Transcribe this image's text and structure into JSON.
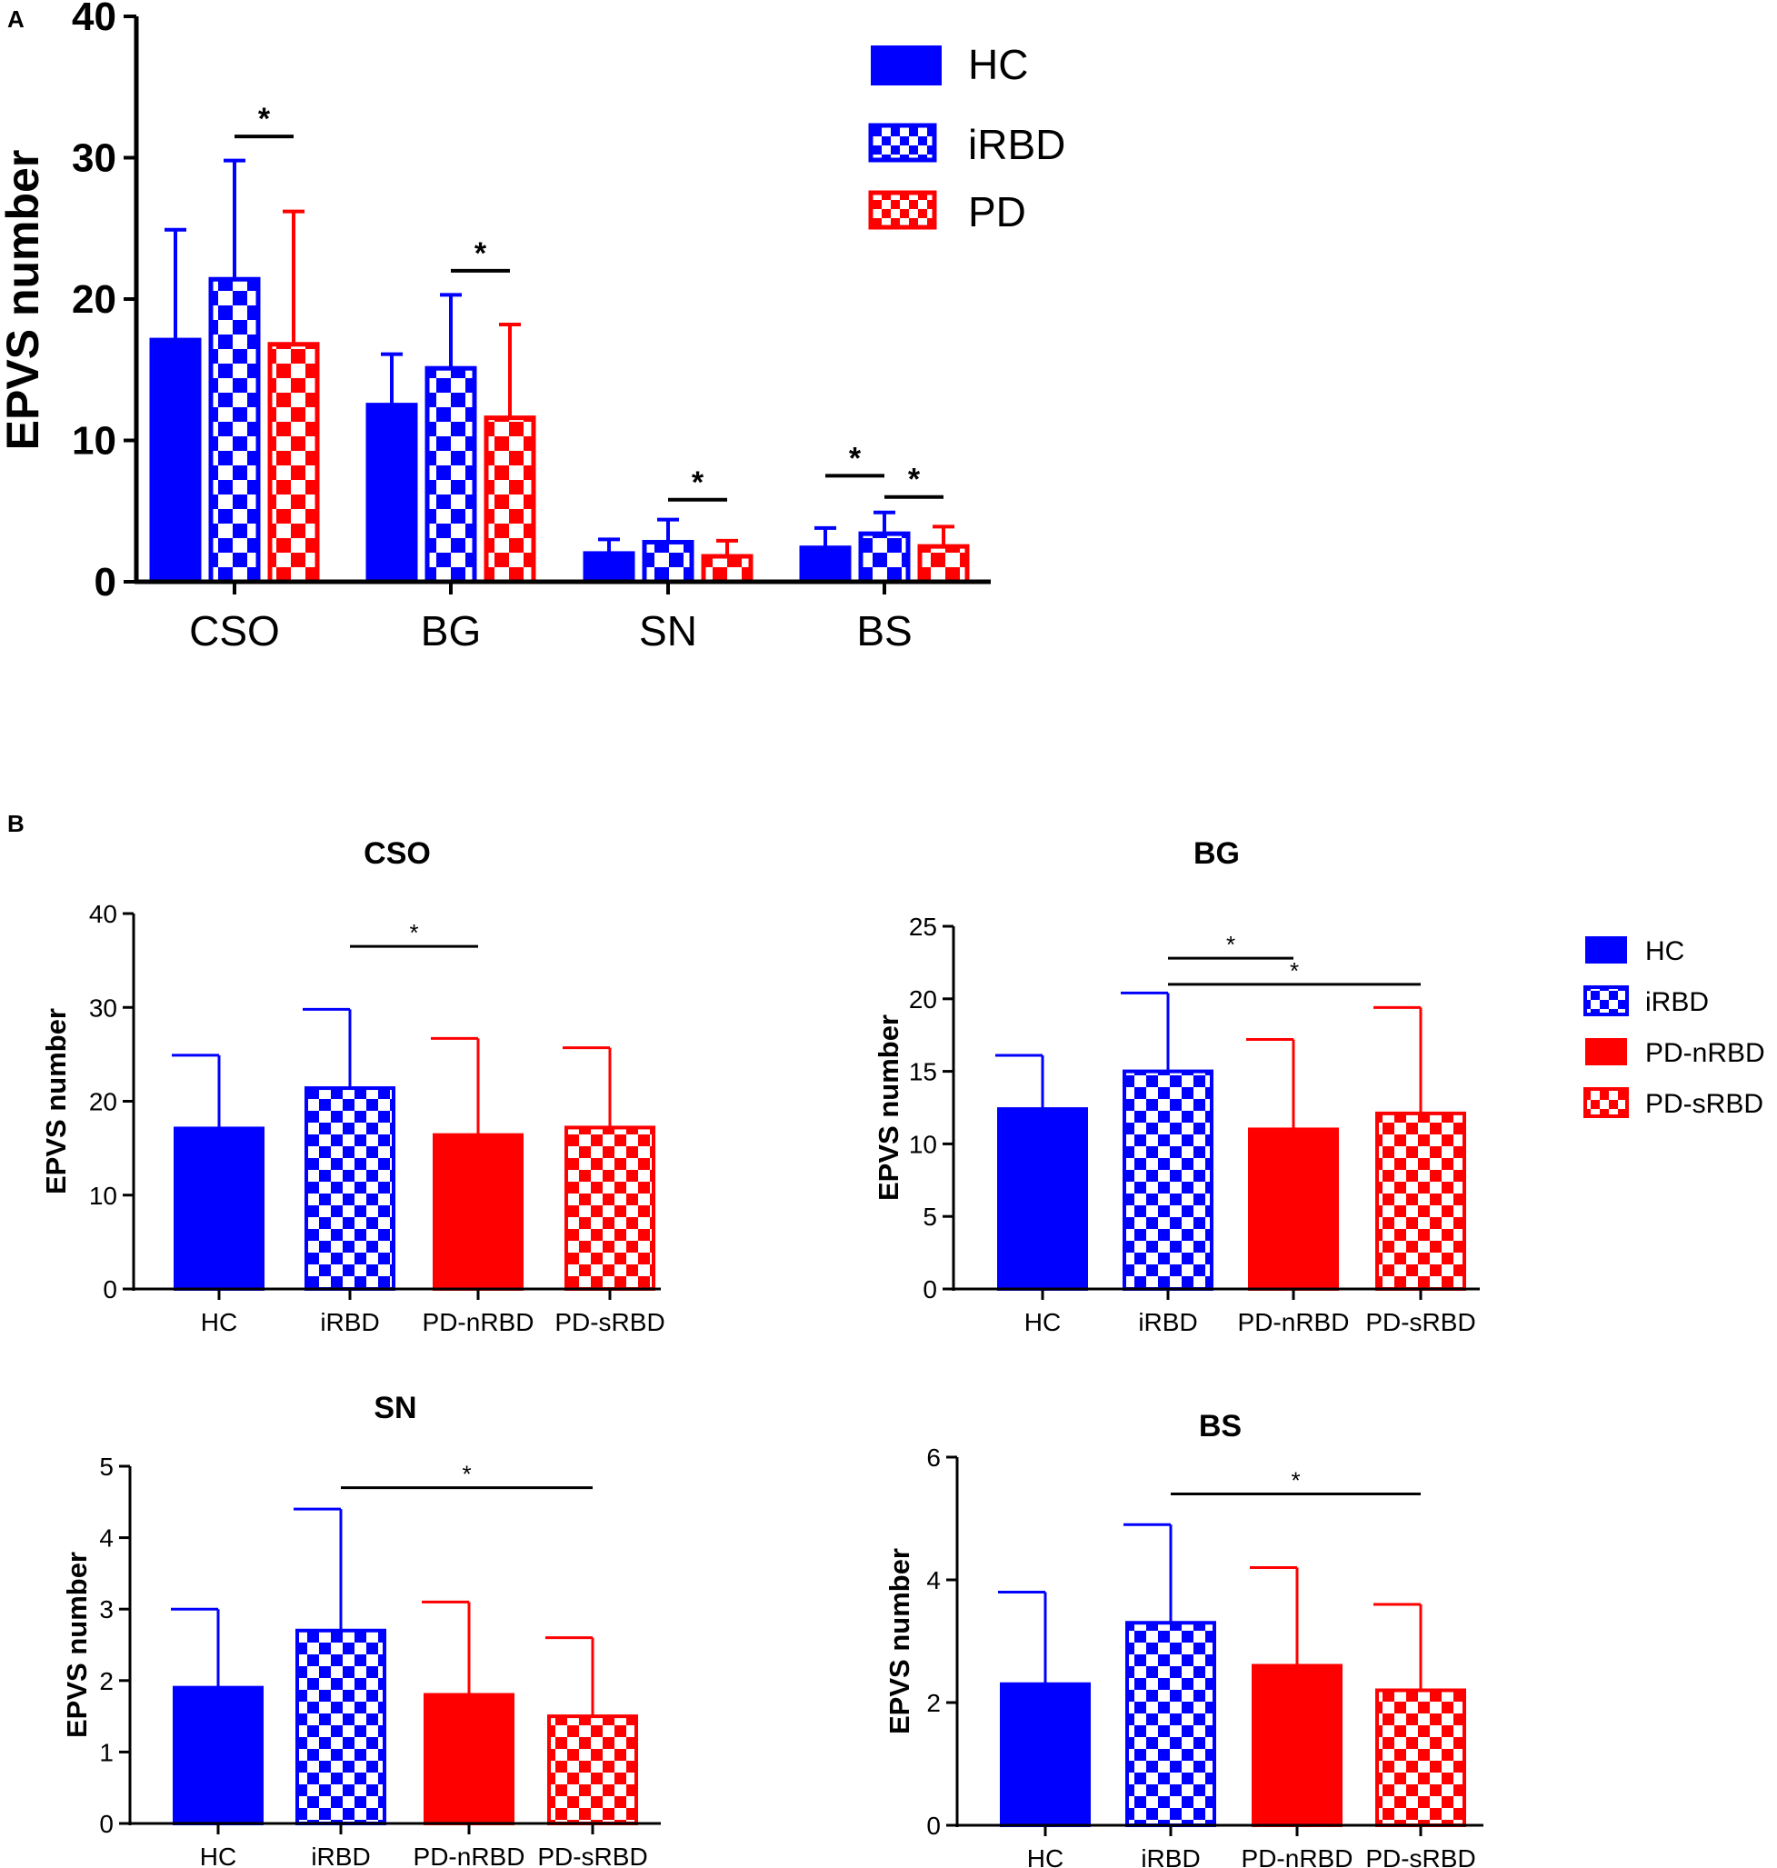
{
  "colors": {
    "blue": "#0000ff",
    "red": "#ff0000",
    "axis": "#000000",
    "white": "#ffffff"
  },
  "panel_labels": {
    "a": "A",
    "b": "B"
  },
  "chart_data": [
    {
      "id": "A",
      "type": "bar",
      "title": "",
      "xlabel": "",
      "ylabel": "EPVS number",
      "ylim": [
        0,
        40
      ],
      "yticks": [
        0,
        10,
        20,
        30,
        40
      ],
      "categories": [
        "CSO",
        "BG",
        "SN",
        "BS"
      ],
      "series": [
        {
          "name": "HC",
          "style": "solid",
          "color": "#0000ff",
          "values": [
            17.1,
            12.5,
            2.0,
            2.4
          ],
          "errors": [
            7.8,
            3.6,
            1.0,
            1.4
          ]
        },
        {
          "name": "iRBD",
          "style": "checker",
          "color": "#0000ff",
          "values": [
            21.4,
            15.1,
            2.8,
            3.4
          ],
          "errors": [
            8.4,
            5.2,
            1.6,
            1.5
          ]
        },
        {
          "name": "PD",
          "style": "checker",
          "color": "#ff0000",
          "values": [
            16.8,
            11.6,
            1.8,
            2.5
          ],
          "errors": [
            9.4,
            6.6,
            1.1,
            1.4
          ]
        }
      ],
      "significance": [
        {
          "category": "CSO",
          "from": "iRBD",
          "to": "PD",
          "y": 31.5,
          "label": "*"
        },
        {
          "category": "BG",
          "from": "iRBD",
          "to": "PD",
          "y": 22.0,
          "label": "*"
        },
        {
          "category": "SN",
          "from": "iRBD",
          "to": "PD",
          "y": 5.8,
          "label": "*"
        },
        {
          "category": "BS",
          "from": "HC",
          "to": "iRBD",
          "y": 7.5,
          "label": "*"
        },
        {
          "category": "BS",
          "from": "iRBD",
          "to": "PD",
          "y": 6.0,
          "label": "*"
        }
      ],
      "legend": [
        {
          "name": "HC",
          "style": "solid",
          "color": "#0000ff"
        },
        {
          "name": "iRBD",
          "style": "checker",
          "color": "#0000ff"
        },
        {
          "name": "PD",
          "style": "checker",
          "color": "#ff0000"
        }
      ],
      "legend_position": "top-right"
    },
    {
      "id": "B-CSO",
      "type": "bar",
      "title": "CSO",
      "ylabel": "EPVS number",
      "ylim": [
        0,
        40
      ],
      "yticks": [
        0,
        10,
        20,
        30,
        40
      ],
      "categories": [
        "HC",
        "iRBD",
        "PD-nRBD",
        "PD-sRBD"
      ],
      "values": [
        17.1,
        21.4,
        16.4,
        17.2
      ],
      "errors": [
        7.8,
        8.4,
        10.3,
        8.5
      ],
      "styles": [
        "solid-blue",
        "checker-blue",
        "solid-red",
        "checker-red"
      ],
      "significance": [
        {
          "from": 1,
          "to": 2,
          "y": 36.5,
          "label": "*"
        }
      ]
    },
    {
      "id": "B-BG",
      "type": "bar",
      "title": "BG",
      "ylabel": "EPVS number",
      "ylim": [
        0,
        25
      ],
      "yticks": [
        0,
        5,
        10,
        15,
        20,
        25
      ],
      "categories": [
        "HC",
        "iRBD",
        "PD-nRBD",
        "PD-sRBD"
      ],
      "values": [
        12.4,
        15.0,
        11.0,
        12.1
      ],
      "errors": [
        3.7,
        5.4,
        6.2,
        7.3
      ],
      "styles": [
        "solid-blue",
        "checker-blue",
        "solid-red",
        "checker-red"
      ],
      "significance": [
        {
          "from": 1,
          "to": 2,
          "y": 22.8,
          "label": "*"
        },
        {
          "from": 1,
          "to": 3,
          "y": 21.0,
          "label": "*"
        }
      ],
      "legend": [
        {
          "name": "HC",
          "style": "solid",
          "color": "#0000ff"
        },
        {
          "name": "iRBD",
          "style": "checker",
          "color": "#0000ff"
        },
        {
          "name": "PD-nRBD",
          "style": "solid",
          "color": "#ff0000"
        },
        {
          "name": "PD-sRBD",
          "style": "checker",
          "color": "#ff0000"
        }
      ],
      "legend_position": "right"
    },
    {
      "id": "B-SN",
      "type": "bar",
      "title": "SN",
      "ylabel": "EPVS number",
      "ylim": [
        0,
        5
      ],
      "yticks": [
        0,
        1,
        2,
        3,
        4,
        5
      ],
      "categories": [
        "HC",
        "iRBD",
        "PD-nRBD",
        "PD-sRBD"
      ],
      "values": [
        1.9,
        2.7,
        1.8,
        1.5
      ],
      "errors": [
        1.1,
        1.7,
        1.3,
        1.1
      ],
      "styles": [
        "solid-blue",
        "checker-blue",
        "solid-red",
        "checker-red"
      ],
      "significance": [
        {
          "from": 1,
          "to": 3,
          "y": 4.7,
          "label": "*"
        }
      ]
    },
    {
      "id": "B-BS",
      "type": "bar",
      "title": "BS",
      "ylabel": "EPVS number",
      "ylim": [
        0,
        6
      ],
      "yticks": [
        0,
        2,
        4,
        6
      ],
      "categories": [
        "HC",
        "iRBD",
        "PD-nRBD",
        "PD-sRBD"
      ],
      "values": [
        2.3,
        3.3,
        2.6,
        2.2
      ],
      "errors": [
        1.5,
        1.6,
        1.6,
        1.4
      ],
      "styles": [
        "solid-blue",
        "checker-blue",
        "solid-red",
        "checker-red"
      ],
      "significance": [
        {
          "from": 1,
          "to": 3,
          "y": 5.4,
          "label": "*"
        }
      ]
    }
  ]
}
